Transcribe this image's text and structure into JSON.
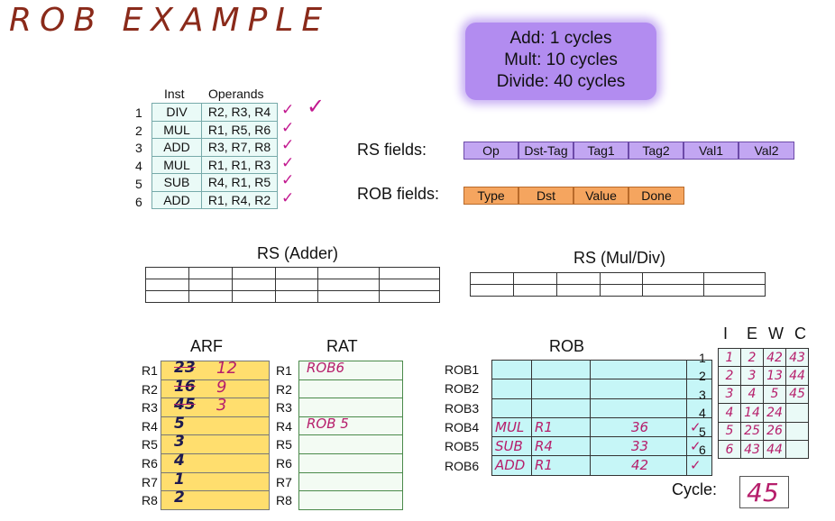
{
  "title": "ROB EXAMPLE",
  "latency": [
    "Add: 1 cycles",
    "Mult: 10 cycles",
    "Divide: 40 cycles"
  ],
  "instructions": {
    "headers": [
      "Inst",
      "Operands"
    ],
    "rows": [
      {
        "num": "1",
        "op": "DIV",
        "operands": "R2, R3, R4"
      },
      {
        "num": "2",
        "op": "MUL",
        "operands": "R1, R5, R6"
      },
      {
        "num": "3",
        "op": "ADD",
        "operands": "R3, R7, R8"
      },
      {
        "num": "4",
        "op": "MUL",
        "operands": "R1, R1, R3"
      },
      {
        "num": "5",
        "op": "SUB",
        "operands": "R4, R1, R5"
      },
      {
        "num": "6",
        "op": "ADD",
        "operands": "R1, R4, R2"
      }
    ],
    "check": "✓"
  },
  "rs_fields": {
    "label": "RS fields:",
    "fields": [
      "Op",
      "Dst-Tag",
      "Tag1",
      "Tag2",
      "Val1",
      "Val2"
    ]
  },
  "rob_fields": {
    "label": "ROB fields:",
    "fields": [
      "Type",
      "Dst",
      "Value",
      "Done"
    ]
  },
  "rs_adder": {
    "label": "RS (Adder)"
  },
  "rs_muldiv": {
    "label": "RS (Mul/Div)"
  },
  "arf": {
    "label": "ARF",
    "regs": [
      "R1",
      "R2",
      "R3",
      "R4",
      "R5",
      "R6",
      "R7",
      "R8"
    ],
    "old_values": [
      "23",
      "16",
      "45",
      "5",
      "3",
      "4",
      "1",
      "2"
    ],
    "new_values": [
      "12",
      "9",
      "3",
      "",
      "",
      "",
      "",
      ""
    ]
  },
  "rat": {
    "label": "RAT",
    "regs": [
      "R1",
      "R2",
      "R3",
      "R4",
      "R5",
      "R6",
      "R7",
      "R8"
    ],
    "entries": [
      "ROB6",
      "",
      "",
      "ROB 5",
      "",
      "",
      "",
      ""
    ]
  },
  "rob": {
    "label": "ROB",
    "entries": [
      "ROB1",
      "ROB2",
      "ROB3",
      "ROB4",
      "ROB5",
      "ROB6"
    ],
    "rows": [
      {
        "type": "",
        "dst": "",
        "value": "",
        "done": ""
      },
      {
        "type": "",
        "dst": "",
        "value": "",
        "done": ""
      },
      {
        "type": "",
        "dst": "",
        "value": "",
        "done": ""
      },
      {
        "type": "MUL",
        "dst": "R1",
        "value": "36",
        "done": "✓"
      },
      {
        "type": "SUB",
        "dst": "R4",
        "value": "33",
        "done": "✓"
      },
      {
        "type": "ADD",
        "dst": "R1",
        "value": "42",
        "done": "✓"
      }
    ]
  },
  "timing": {
    "headers": [
      "I",
      "E",
      "W",
      "C"
    ],
    "rows": [
      {
        "num": "1",
        "I": "1",
        "E": "2",
        "W": "42",
        "C": "43"
      },
      {
        "num": "2",
        "I": "2",
        "E": "3",
        "W": "13",
        "C": "44"
      },
      {
        "num": "3",
        "I": "3",
        "E": "4",
        "W": "5",
        "C": "45"
      },
      {
        "num": "4",
        "I": "4",
        "E": "14",
        "W": "24",
        "C": ""
      },
      {
        "num": "5",
        "I": "5",
        "E": "25",
        "W": "26",
        "C": ""
      },
      {
        "num": "6",
        "I": "6",
        "E": "43",
        "W": "44",
        "C": ""
      }
    ]
  },
  "cycle": {
    "label": "Cycle:",
    "value": "45"
  },
  "colors": {
    "pink_ink": "#b61e6b",
    "dark_ink": "#1e1a4f",
    "latency_box": "#b28cf0"
  }
}
